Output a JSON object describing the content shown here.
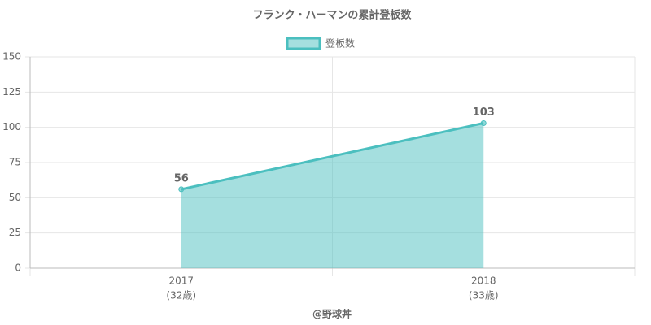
{
  "chart_data": {
    "type": "line",
    "title": "フランク・ハーマンの累計登板数",
    "categories": [
      "2017",
      "2018"
    ],
    "category_sublabels": [
      "(32歳)",
      "(33歳)"
    ],
    "series": [
      {
        "name": "登板数",
        "color": "#4bbfbf",
        "values": [
          56,
          103
        ]
      }
    ],
    "fill": true,
    "ylim": [
      0,
      150
    ],
    "yticks": [
      0,
      25,
      50,
      75,
      100,
      125,
      150
    ],
    "grid": true,
    "legend": "top",
    "footer": "@野球丼"
  }
}
